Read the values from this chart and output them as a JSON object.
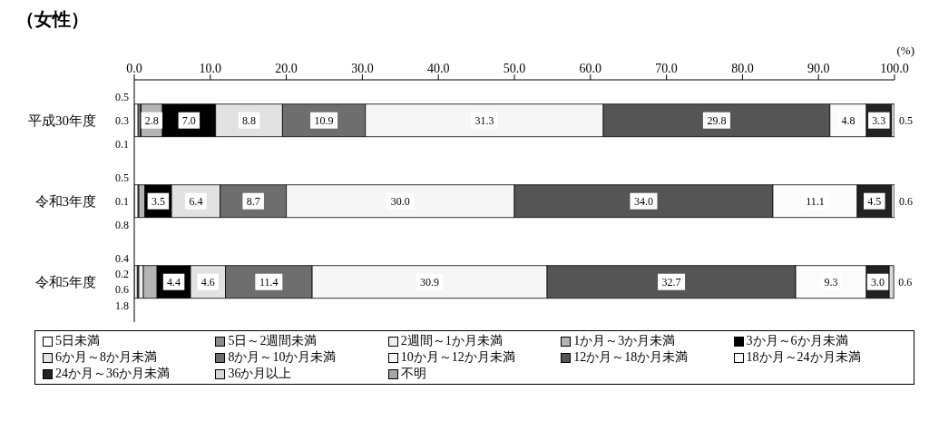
{
  "chart_data": {
    "type": "bar",
    "orientation": "horizontal",
    "stacked": true,
    "title": "（女性）",
    "annotations": [
      "(%)"
    ],
    "categories": [
      "平成30年度",
      "令和3年度",
      "令和5年度"
    ],
    "xlim": [
      0,
      100
    ],
    "xticks": [
      {
        "value": 0,
        "label": "0.0"
      },
      {
        "value": 10,
        "label": "10.0"
      },
      {
        "value": 20,
        "label": "20.0"
      },
      {
        "value": 30,
        "label": "30.0"
      },
      {
        "value": 40,
        "label": "40.0"
      },
      {
        "value": 50,
        "label": "50.0"
      },
      {
        "value": 60,
        "label": "60.0"
      },
      {
        "value": 70,
        "label": "70.0"
      },
      {
        "value": 80,
        "label": "80.0"
      },
      {
        "value": 90,
        "label": "90.0"
      },
      {
        "value": 100,
        "label": "100.0"
      }
    ],
    "legend": "bottom",
    "series": [
      {
        "name": "5日未満",
        "color": "#ffffff",
        "values": [
          0.5,
          0.5,
          0.4
        ],
        "value_labels": [
          "0.5",
          "0.5",
          "0.4"
        ]
      },
      {
        "name": "5日～2週間未満",
        "color": "#8c8c8c",
        "values": [
          0.3,
          null,
          0.2
        ],
        "value_labels": [
          "0.3",
          null,
          "0.2"
        ]
      },
      {
        "name": "2週間～1か月未満",
        "color": "#eeeeee",
        "values": [
          0.1,
          0.1,
          0.6
        ],
        "value_labels": [
          "0.1",
          "0.1",
          "0.6"
        ]
      },
      {
        "name": "1か月～3か月未満",
        "color": "#b4b4b4",
        "values": [
          2.8,
          0.8,
          1.8
        ],
        "value_labels": [
          "2.8",
          "0.8",
          "1.8"
        ]
      },
      {
        "name": "3か月～6か月未満",
        "color": "#000000",
        "values": [
          7.0,
          3.5,
          4.4
        ],
        "value_labels": [
          "7.0",
          "3.5",
          "4.4"
        ]
      },
      {
        "name": "6か月～8か月未満",
        "color": "#e2e2e2",
        "values": [
          8.8,
          6.4,
          4.6
        ],
        "value_labels": [
          "8.8",
          "6.4",
          "4.6"
        ]
      },
      {
        "name": "8か月～10か月未満",
        "color": "#6e6e6e",
        "values": [
          10.9,
          8.7,
          11.4
        ],
        "value_labels": [
          "10.9",
          "8.7",
          "11.4"
        ]
      },
      {
        "name": "10か月～12か月未満",
        "color": "#f6f6f6",
        "values": [
          31.3,
          30.0,
          30.9
        ],
        "value_labels": [
          "31.3",
          "30.0",
          "30.9"
        ]
      },
      {
        "name": "12か月～18か月未満",
        "color": "#555555",
        "values": [
          29.8,
          34.0,
          32.7
        ],
        "value_labels": [
          "29.8",
          "34.0",
          "32.7"
        ]
      },
      {
        "name": "18か月～24か月未満",
        "color": "#fbfbfb",
        "values": [
          4.8,
          11.1,
          9.3
        ],
        "value_labels": [
          "4.8",
          "11.1",
          "9.3"
        ]
      },
      {
        "name": "24か月～36か月未満",
        "color": "#222222",
        "values": [
          3.3,
          4.5,
          3.0
        ],
        "value_labels": [
          "3.3",
          "4.5",
          "3.0"
        ]
      },
      {
        "name": "36か月以上",
        "color": "#d8d8d8",
        "values": [
          0.5,
          0.6,
          0.6
        ],
        "value_labels": [
          "0.5",
          "0.6",
          "0.6"
        ]
      },
      {
        "name": "不明",
        "color": "#a6a6a6",
        "values": [
          null,
          null,
          null
        ]
      }
    ]
  }
}
